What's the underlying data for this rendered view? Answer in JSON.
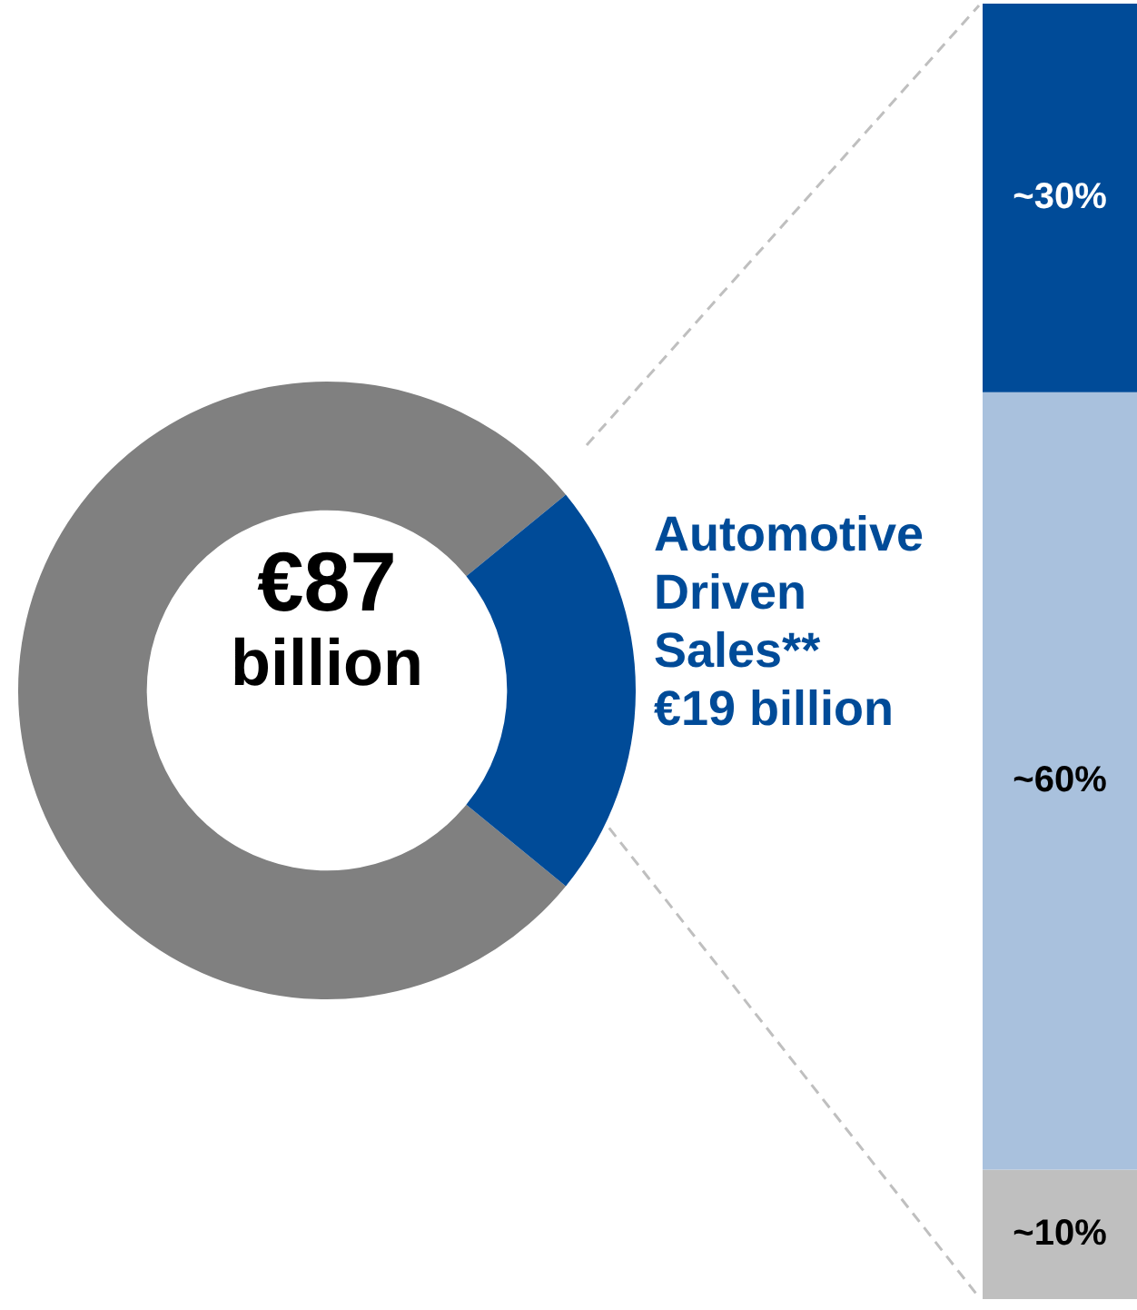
{
  "chart_data": [
    {
      "type": "donut",
      "categories": [
        null,
        "Automotive Driven Sales**"
      ],
      "values": [
        68,
        19
      ],
      "colors": [
        "#808080",
        "#004b98"
      ],
      "value_labels": [
        null,
        "€19 billion"
      ],
      "annotations": [
        "€87 billion"
      ],
      "legend": false
    },
    {
      "type": "bar",
      "stacked": true,
      "categories": [
        null
      ],
      "tick_labels": false,
      "legend": false,
      "series": [
        {
          "color": "#bfbfbf",
          "values": [
            10
          ],
          "value_labels": [
            "~10%"
          ]
        },
        {
          "color": "#a9c1dd",
          "values": [
            60
          ],
          "value_labels": [
            "~60%"
          ]
        },
        {
          "color": "#004b98",
          "values": [
            30
          ],
          "value_labels": [
            "~30%"
          ]
        }
      ]
    }
  ]
}
